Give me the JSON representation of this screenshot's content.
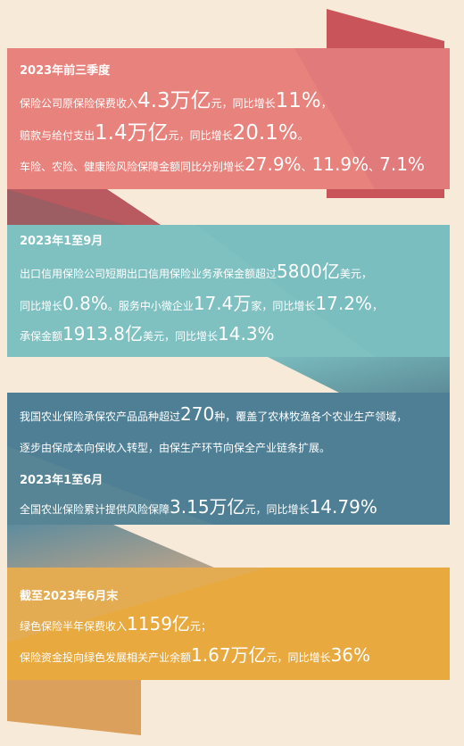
{
  "colors": {
    "background": "#f7ead9",
    "panel1": "#e8827c",
    "panel2": "#7bbec0",
    "panel3": "#4e7f95",
    "panel4": "#e8a93e",
    "ribbon_dark": "#c94f56",
    "ribbon_mid": "#a48e8a",
    "text": "#ffffff"
  },
  "panel1": {
    "heading": "2023年前三季度",
    "l1": {
      "a": "保险公司原保险保费收入",
      "b": "4.3万亿",
      "c": "元，同比增长",
      "d": "11%",
      "e": "，"
    },
    "l2": {
      "a": "赔款与给付支出",
      "b": "1.4万亿",
      "c": "元，同比增长",
      "d": "20.1%",
      "e": "。"
    },
    "l3": {
      "a": "车险、农险、健康险风险保障金额同比分别增长",
      "b": "27.9%",
      "c": "、",
      "d": "11.9%",
      "e": "、",
      "f": "7.1%"
    }
  },
  "panel2": {
    "heading": "2023年1至9月",
    "l1": {
      "a": "出口信用保险公司短期出口信用保险业务承保金额超过",
      "b": "5800亿",
      "c": "美元，"
    },
    "l2": {
      "a": "同比增长",
      "b": "0.8%",
      "c": "。服务中小微企业",
      "d": "17.4万",
      "e": "家，同比增长",
      "f": "17.2%",
      "g": "，"
    },
    "l3": {
      "a": "承保金额",
      "b": "1913.8亿",
      "c": "美元，同比增长",
      "d": "14.3%"
    }
  },
  "panel3": {
    "l1": {
      "a": "我国农业保险承保农产品品种超过",
      "b": "270",
      "c": "种，覆盖了农林牧渔各个农业生产领域，"
    },
    "l2": "逐步由保成本向保收入转型，由保生产环节向保全产业链条扩展。",
    "heading": "2023年1至6月",
    "l3": {
      "a": "全国农业保险累计提供风险保障",
      "b": "3.15万亿",
      "c": "元，同比增长",
      "d": "14.79%"
    }
  },
  "panel4": {
    "heading": "截至2023年6月末",
    "l1": {
      "a": "绿色保险半年保费收入",
      "b": "1159亿",
      "c": "元；"
    },
    "l2": {
      "a": "保险资金投向绿色发展相关产业余额",
      "b": "1.67万亿",
      "c": "元，同比增长",
      "d": "36%"
    }
  }
}
